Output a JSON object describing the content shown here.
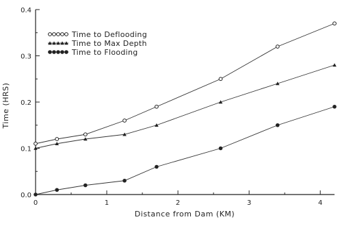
{
  "chart_data": {
    "type": "line",
    "xlabel": "Distance from Dam (KM)",
    "ylabel": "Time (HRS)",
    "xlim": [
      0,
      4.2
    ],
    "ylim": [
      0,
      0.4
    ],
    "x_ticks": [
      0,
      1,
      2,
      3,
      4
    ],
    "y_ticks": [
      0.0,
      0.1,
      0.2,
      0.3,
      0.4
    ],
    "x_tick_labels": [
      "0",
      "1",
      "2",
      "3",
      "4"
    ],
    "y_tick_labels": [
      "0.0",
      "0.1",
      "0.2",
      "0.3",
      "0.4"
    ],
    "grid": false,
    "legend_position": "top-left",
    "x": [
      0,
      0.3,
      0.7,
      1.25,
      1.7,
      2.6,
      3.4,
      4.2
    ],
    "series": [
      {
        "name": "Time to Deflooding",
        "marker": "open-circle",
        "values": [
          0.11,
          0.12,
          0.13,
          0.16,
          0.19,
          0.25,
          0.32,
          0.37
        ]
      },
      {
        "name": "Time to Max Depth",
        "marker": "filled-triangle",
        "values": [
          0.1,
          0.11,
          0.12,
          0.13,
          0.15,
          0.2,
          0.24,
          0.28
        ]
      },
      {
        "name": "Time to Flooding",
        "marker": "filled-circle",
        "values": [
          0.0,
          0.01,
          0.02,
          0.03,
          0.06,
          0.1,
          0.15,
          0.19
        ]
      }
    ]
  }
}
